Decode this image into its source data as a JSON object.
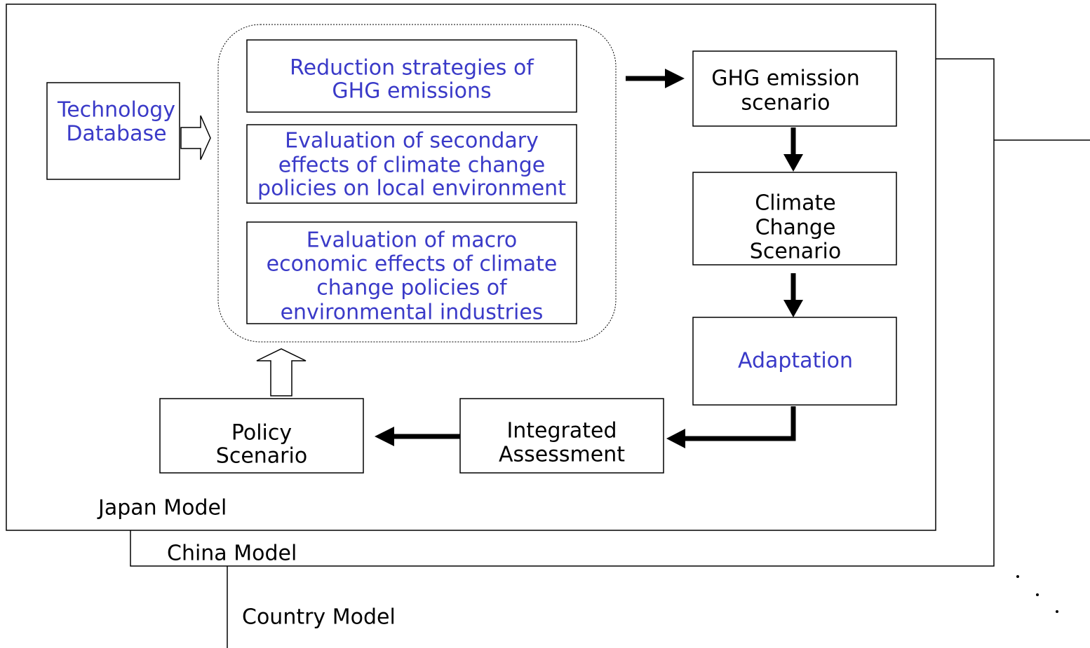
{
  "nodes": [
    {
      "lines": [
        "Technology",
        "Database"
      ]
    },
    {
      "lines": [
        "Reduction strategies of",
        "GHG emissions"
      ]
    },
    {
      "lines": [
        "Evaluation of secondary",
        "effects of climate change",
        "policies on local environment"
      ]
    },
    {
      "lines": [
        "Evaluation of macro",
        "economic effects of climate",
        "change policies of",
        "environmental industries"
      ]
    },
    {
      "lines": [
        "GHG emission",
        "scenario"
      ]
    },
    {
      "lines": [
        "Climate",
        "Change",
        "Scenario"
      ]
    },
    {
      "lines": [
        "Adaptation"
      ]
    },
    {
      "lines": [
        "Integrated",
        "Assessment"
      ]
    },
    {
      "lines": [
        "Policy",
        "Scenario"
      ]
    }
  ],
  "models": [
    "Japan Model",
    "China Model",
    "Country Model"
  ]
}
